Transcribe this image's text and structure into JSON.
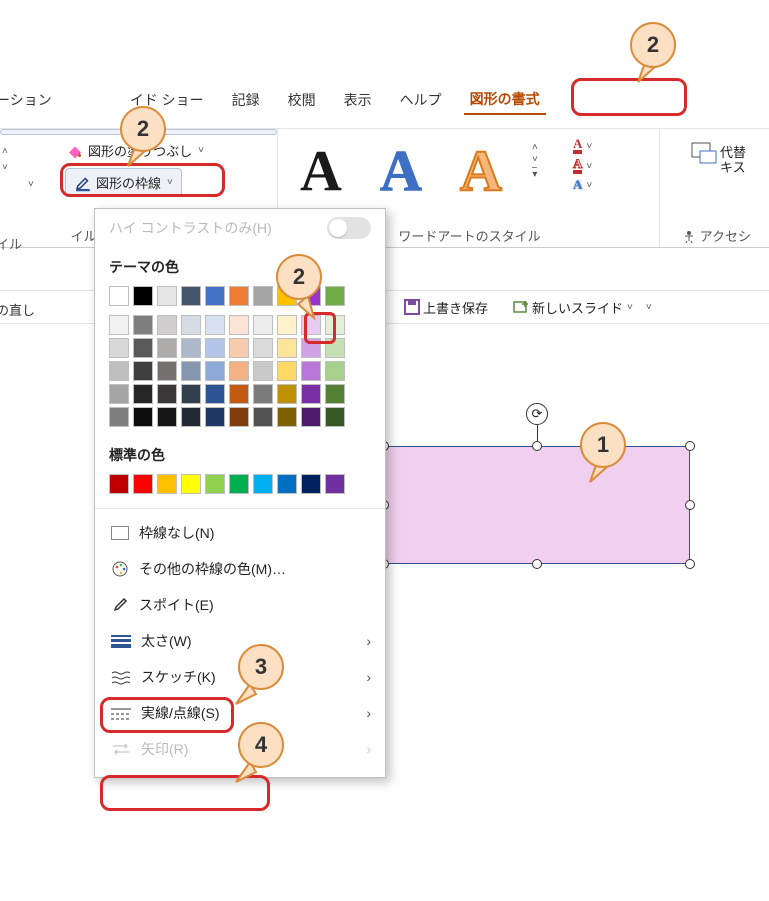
{
  "tabs": {
    "animation_partial": "メーション",
    "slideshow": "イド ショー",
    "record": "記録",
    "review": "校閲",
    "view": "表示",
    "help": "ヘルプ",
    "shape_format": "図形の書式"
  },
  "ribbon": {
    "shape_fill": "図形の塗りつぶし",
    "shape_outline": "図形の枠線",
    "shape_styles_label": "イル",
    "redo_label": "の直し",
    "wordart_styles_label": "ワードアートのスタイル",
    "accessibility": "アクセシ",
    "alt_text_top": "代替",
    "alt_text_bottom": "キス"
  },
  "subbar": {
    "save": "上書き保存",
    "new_slide": "新しいスライド"
  },
  "dropdown": {
    "high_contrast_only": "ハイ コントラストのみ(H)",
    "theme_colors": "テーマの色",
    "standard_colors": "標準の色",
    "no_outline": "枠線なし(N)",
    "more_colors": "その他の枠線の色(M)…",
    "eyedropper": "スポイト(E)",
    "weight": "太さ(W)",
    "sketched": "スケッチ(K)",
    "dashes": "実線/点線(S)",
    "arrows": "矢印(R)"
  },
  "callouts": {
    "c1": "1",
    "c2": "2",
    "c3": "3",
    "c4": "4"
  },
  "colors": {
    "theme_row1": [
      "#ffffff",
      "#000000",
      "#e7e6e6",
      "#44546a",
      "#4472c4",
      "#ed7d31",
      "#a5a5a5",
      "#ffc000",
      "#9933cc",
      "#70ad47"
    ],
    "theme_shades": [
      [
        "#f2f2f2",
        "#7f7f7f",
        "#d0cece",
        "#d6dce4",
        "#d9e2f3",
        "#fbe3d5",
        "#ededed",
        "#fff2cc",
        "#e6ccf2",
        "#e2efd9"
      ],
      [
        "#d8d8d8",
        "#595959",
        "#aeabab",
        "#adb9ca",
        "#b4c6e7",
        "#f7cbac",
        "#dbdbdb",
        "#fee599",
        "#d1a3e6",
        "#c5e0b3"
      ],
      [
        "#bfbfbf",
        "#3f3f3f",
        "#757070",
        "#8496b0",
        "#8eaadb",
        "#f4b183",
        "#c9c9c9",
        "#ffd965",
        "#b877d9",
        "#a8d08d"
      ],
      [
        "#a5a5a5",
        "#262626",
        "#3a3838",
        "#323f4f",
        "#2f5496",
        "#c55a11",
        "#7b7b7b",
        "#bf9000",
        "#7a2ea6",
        "#538135"
      ],
      [
        "#7f7f7f",
        "#0c0c0c",
        "#171616",
        "#222a35",
        "#1f3864",
        "#833c0b",
        "#525252",
        "#7f6000",
        "#4e1b6b",
        "#375623"
      ]
    ],
    "standard": [
      "#c00000",
      "#ff0000",
      "#ffc000",
      "#ffff00",
      "#92d050",
      "#00b050",
      "#00b0f0",
      "#0070c0",
      "#002060",
      "#7030a0"
    ],
    "shape_fill_color": "#f0d0ee",
    "shape_border_color": "#2f528f",
    "highlight_border": "#d82a2a",
    "callout_bg": "#fce0c4",
    "callout_border": "#d98b3a",
    "shape_format_tab_color": "#b84a00"
  },
  "big_A_colors": {
    "a1": "#1a1a1a",
    "a2": "#3d6fc4",
    "a3": "#e38b3a"
  }
}
